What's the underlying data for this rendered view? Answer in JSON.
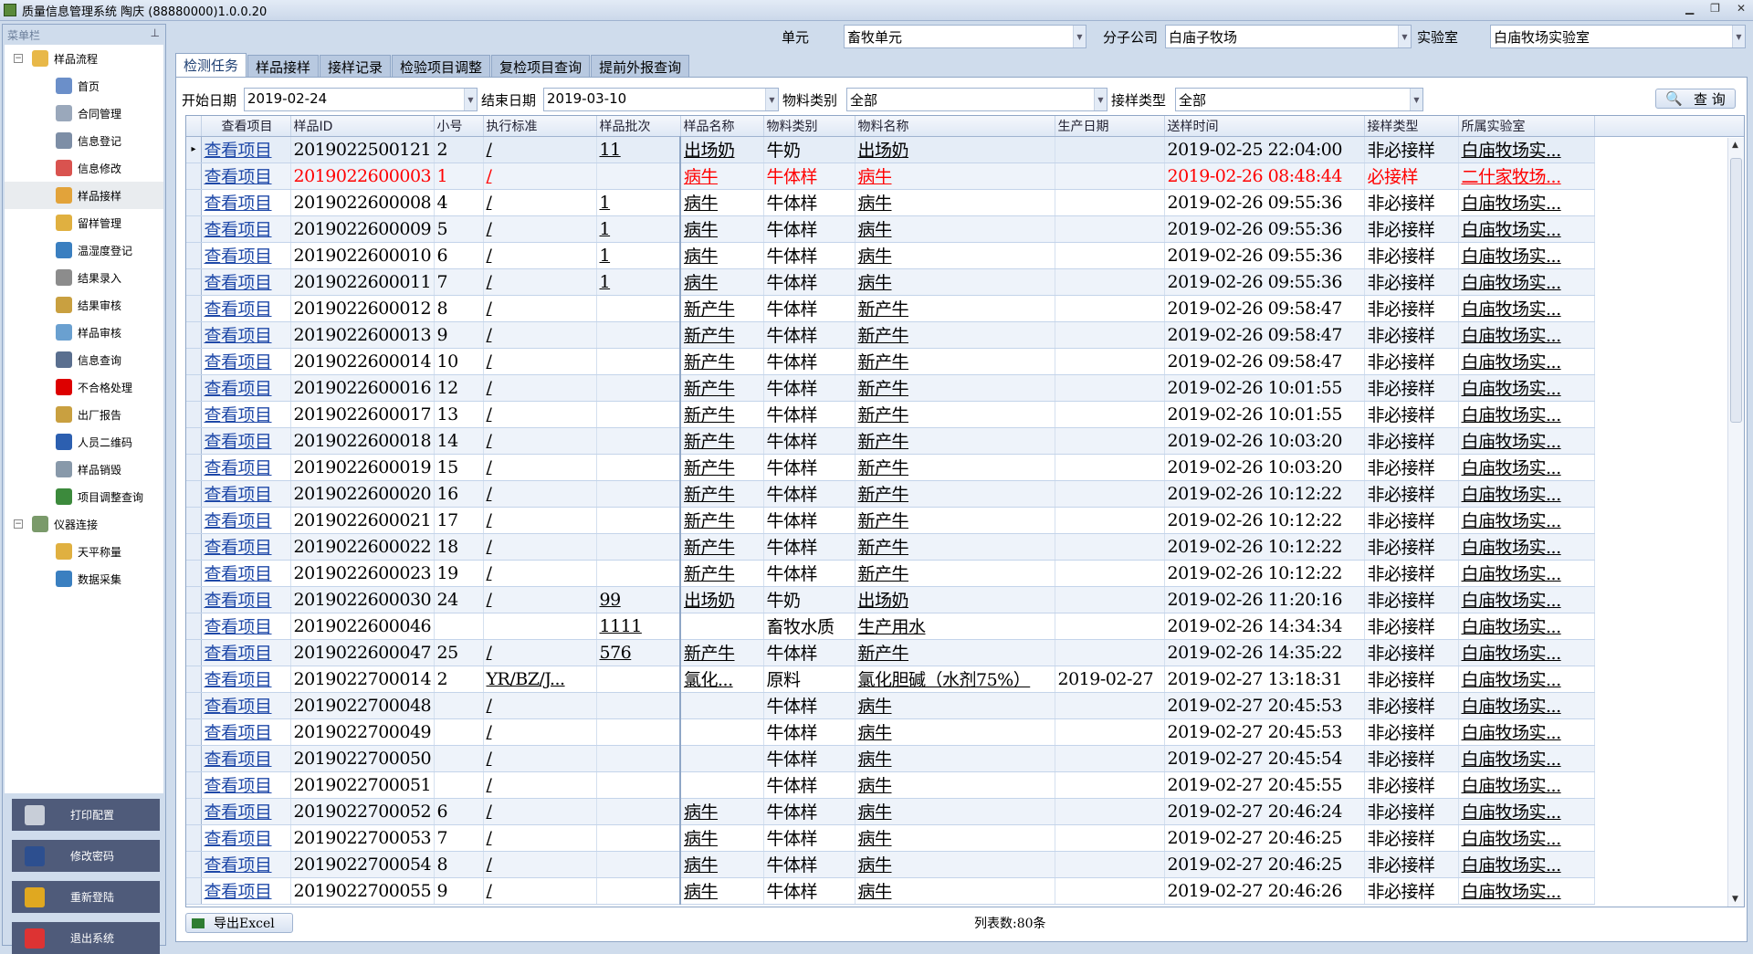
{
  "window": {
    "title": "质量信息管理系统  陶庆 (88880000)1.0.0.20"
  },
  "sidebar": {
    "header": "菜单栏",
    "groups": [
      {
        "label": "样品流程",
        "items": [
          "首页",
          "合同管理",
          "信息登记",
          "信息修改",
          "样品接样",
          "留样管理",
          "温湿度登记",
          "结果录入",
          "结果审核",
          "样品审核",
          "信息查询",
          "不合格处理",
          "出厂报告",
          "人员二维码",
          "样品销毁",
          "项目调整查询"
        ],
        "selected": "样品接样"
      },
      {
        "label": "仪器连接",
        "items": [
          "天平称量",
          "数据采集"
        ]
      }
    ],
    "buttons": [
      "打印配置",
      "修改密码",
      "重新登陆",
      "退出系统"
    ]
  },
  "top": {
    "unit_label": "单元",
    "unit_value": "畜牧单元",
    "company_label": "分子公司",
    "company_value": "白庙子牧场",
    "lab_label": "实验室",
    "lab_value": "白庙牧场实验室"
  },
  "tabs": [
    "检测任务",
    "样品接样",
    "接样记录",
    "检验项目调整",
    "复检项目查询",
    "提前外报查询"
  ],
  "active_tab": "检测任务",
  "filters": {
    "start_label": "开始日期",
    "start_value": "2019-02-24",
    "end_label": "结束日期",
    "end_value": "2019-03-10",
    "mtype_label": "物料类别",
    "mtype_value": "全部",
    "rtype_label": "接样类型",
    "rtype_value": "全部",
    "query_button": "查 询"
  },
  "grid": {
    "columns": [
      "查看项目",
      "样品ID",
      "小号",
      "执行标准",
      "样品批次",
      "样品名称",
      "物料类别",
      "物料名称",
      "生产日期",
      "送样时间",
      "接样类型",
      "所属实验室"
    ],
    "link_text": "查看项目",
    "rows": [
      [
        "2019022500121",
        "2",
        "/",
        "11",
        "出场奶",
        "牛奶",
        "出场奶",
        "",
        "2019-02-25 22:04:00",
        "非必接样",
        "白庙牧场实..."
      ],
      [
        "2019022600003",
        "1",
        "/",
        "",
        "病牛",
        "牛体样",
        "病牛",
        "",
        "2019-02-26 08:48:44",
        "必接样",
        "二什家牧场..."
      ],
      [
        "2019022600008",
        "4",
        "/",
        "1",
        "病牛",
        "牛体样",
        "病牛",
        "",
        "2019-02-26 09:55:36",
        "非必接样",
        "白庙牧场实..."
      ],
      [
        "2019022600009",
        "5",
        "/",
        "1",
        "病牛",
        "牛体样",
        "病牛",
        "",
        "2019-02-26 09:55:36",
        "非必接样",
        "白庙牧场实..."
      ],
      [
        "2019022600010",
        "6",
        "/",
        "1",
        "病牛",
        "牛体样",
        "病牛",
        "",
        "2019-02-26 09:55:36",
        "非必接样",
        "白庙牧场实..."
      ],
      [
        "2019022600011",
        "7",
        "/",
        "1",
        "病牛",
        "牛体样",
        "病牛",
        "",
        "2019-02-26 09:55:36",
        "非必接样",
        "白庙牧场实..."
      ],
      [
        "2019022600012",
        "8",
        "/",
        "",
        "新产牛",
        "牛体样",
        "新产牛",
        "",
        "2019-02-26 09:58:47",
        "非必接样",
        "白庙牧场实..."
      ],
      [
        "2019022600013",
        "9",
        "/",
        "",
        "新产牛",
        "牛体样",
        "新产牛",
        "",
        "2019-02-26 09:58:47",
        "非必接样",
        "白庙牧场实..."
      ],
      [
        "2019022600014",
        "10",
        "/",
        "",
        "新产牛",
        "牛体样",
        "新产牛",
        "",
        "2019-02-26 09:58:47",
        "非必接样",
        "白庙牧场实..."
      ],
      [
        "2019022600016",
        "12",
        "/",
        "",
        "新产牛",
        "牛体样",
        "新产牛",
        "",
        "2019-02-26 10:01:55",
        "非必接样",
        "白庙牧场实..."
      ],
      [
        "2019022600017",
        "13",
        "/",
        "",
        "新产牛",
        "牛体样",
        "新产牛",
        "",
        "2019-02-26 10:01:55",
        "非必接样",
        "白庙牧场实..."
      ],
      [
        "2019022600018",
        "14",
        "/",
        "",
        "新产牛",
        "牛体样",
        "新产牛",
        "",
        "2019-02-26 10:03:20",
        "非必接样",
        "白庙牧场实..."
      ],
      [
        "2019022600019",
        "15",
        "/",
        "",
        "新产牛",
        "牛体样",
        "新产牛",
        "",
        "2019-02-26 10:03:20",
        "非必接样",
        "白庙牧场实..."
      ],
      [
        "2019022600020",
        "16",
        "/",
        "",
        "新产牛",
        "牛体样",
        "新产牛",
        "",
        "2019-02-26 10:12:22",
        "非必接样",
        "白庙牧场实..."
      ],
      [
        "2019022600021",
        "17",
        "/",
        "",
        "新产牛",
        "牛体样",
        "新产牛",
        "",
        "2019-02-26 10:12:22",
        "非必接样",
        "白庙牧场实..."
      ],
      [
        "2019022600022",
        "18",
        "/",
        "",
        "新产牛",
        "牛体样",
        "新产牛",
        "",
        "2019-02-26 10:12:22",
        "非必接样",
        "白庙牧场实..."
      ],
      [
        "2019022600023",
        "19",
        "/",
        "",
        "新产牛",
        "牛体样",
        "新产牛",
        "",
        "2019-02-26 10:12:22",
        "非必接样",
        "白庙牧场实..."
      ],
      [
        "2019022600030",
        "24",
        "/",
        "99",
        "出场奶",
        "牛奶",
        "出场奶",
        "",
        "2019-02-26 11:20:16",
        "非必接样",
        "白庙牧场实..."
      ],
      [
        "2019022600046",
        "",
        "",
        "1111",
        "",
        "畜牧水质",
        "生产用水",
        "",
        "2019-02-26 14:34:34",
        "非必接样",
        "白庙牧场实..."
      ],
      [
        "2019022600047",
        "25",
        "/",
        "576",
        "新产牛",
        "牛体样",
        "新产牛",
        "",
        "2019-02-26 14:35:22",
        "非必接样",
        "白庙牧场实..."
      ],
      [
        "2019022700014",
        "2",
        "YR/BZ/J...",
        "",
        "氯化...",
        "原料",
        "氯化胆碱（水剂75%）",
        "2019-02-27",
        "2019-02-27 13:18:31",
        "非必接样",
        "白庙牧场实..."
      ],
      [
        "2019022700048",
        "",
        "/",
        "",
        "",
        "牛体样",
        "病牛",
        "",
        "2019-02-27 20:45:53",
        "非必接样",
        "白庙牧场实..."
      ],
      [
        "2019022700049",
        "",
        "/",
        "",
        "",
        "牛体样",
        "病牛",
        "",
        "2019-02-27 20:45:53",
        "非必接样",
        "白庙牧场实..."
      ],
      [
        "2019022700050",
        "",
        "/",
        "",
        "",
        "牛体样",
        "病牛",
        "",
        "2019-02-27 20:45:54",
        "非必接样",
        "白庙牧场实..."
      ],
      [
        "2019022700051",
        "",
        "/",
        "",
        "",
        "牛体样",
        "病牛",
        "",
        "2019-02-27 20:45:55",
        "非必接样",
        "白庙牧场实..."
      ],
      [
        "2019022700052",
        "6",
        "/",
        "",
        "病牛",
        "牛体样",
        "病牛",
        "",
        "2019-02-27 20:46:24",
        "非必接样",
        "白庙牧场实..."
      ],
      [
        "2019022700053",
        "7",
        "/",
        "",
        "病牛",
        "牛体样",
        "病牛",
        "",
        "2019-02-27 20:46:25",
        "非必接样",
        "白庙牧场实..."
      ],
      [
        "2019022700054",
        "8",
        "/",
        "",
        "病牛",
        "牛体样",
        "病牛",
        "",
        "2019-02-27 20:46:25",
        "非必接样",
        "白庙牧场实..."
      ],
      [
        "2019022700055",
        "9",
        "/",
        "",
        "病牛",
        "牛体样",
        "病牛",
        "",
        "2019-02-27 20:46:26",
        "非必接样",
        "白庙牧场实..."
      ]
    ],
    "highlight_row_index": 1,
    "highlight_color": "#ff0000"
  },
  "footer": {
    "export_button": "导出Excel",
    "row_count": "列表数:80条"
  }
}
